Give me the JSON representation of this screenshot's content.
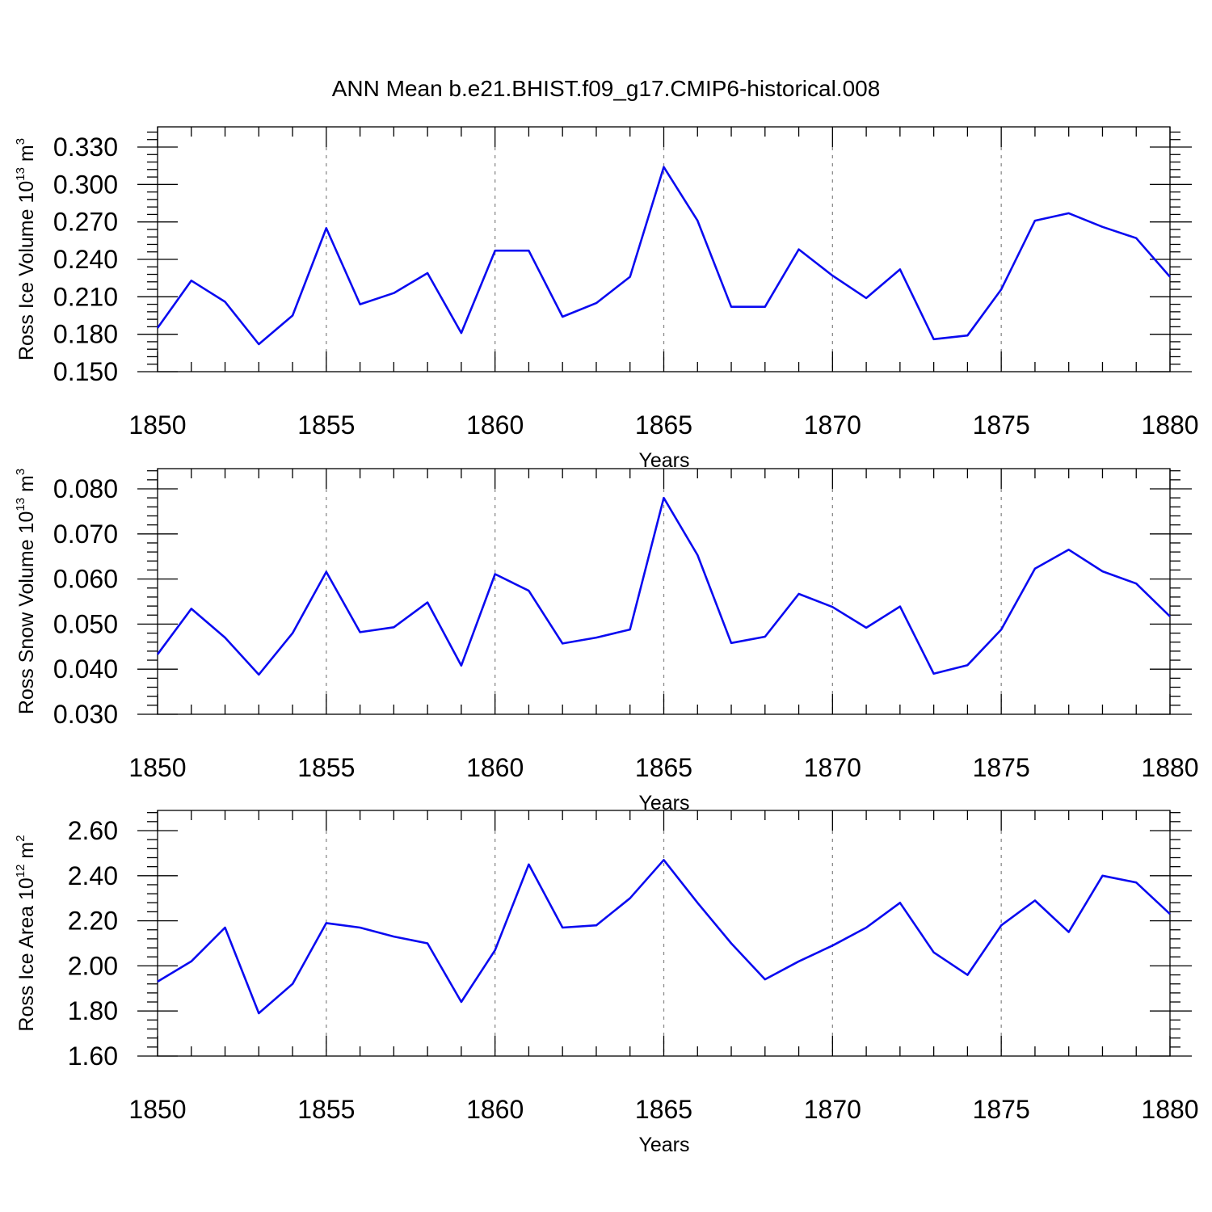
{
  "figure": {
    "title": "ANN Mean b.e21.BHIST.f09_g17.CMIP6-historical.008"
  },
  "chart_data": [
    {
      "type": "line",
      "ylabel": {
        "text": "Ross Ice Volume 10",
        "exponent": "13",
        "unit": "m",
        "unit_exponent": "3"
      },
      "xlabel": "Years",
      "xlim": [
        1850,
        1880
      ],
      "ylim": [
        0.15,
        0.33
      ],
      "x_ticks": [
        "1850",
        "1855",
        "1860",
        "1865",
        "1870",
        "1875",
        "1880"
      ],
      "y_ticks": [
        "0.150",
        "0.180",
        "0.210",
        "0.240",
        "0.270",
        "0.300",
        "0.330"
      ],
      "grid": "dashed vertical lines at major x ticks",
      "x": [
        1850,
        1851,
        1852,
        1853,
        1854,
        1855,
        1856,
        1857,
        1858,
        1859,
        1860,
        1861,
        1862,
        1863,
        1864,
        1865,
        1866,
        1867,
        1868,
        1869,
        1870,
        1871,
        1872,
        1873,
        1874,
        1875,
        1876,
        1877,
        1878,
        1879,
        1880
      ],
      "series": [
        {
          "color": "#0a0af0",
          "values": [
            0.185,
            0.223,
            0.206,
            0.172,
            0.195,
            0.265,
            0.204,
            0.213,
            0.229,
            0.181,
            0.247,
            0.247,
            0.194,
            0.205,
            0.226,
            0.314,
            0.271,
            0.202,
            0.202,
            0.248,
            0.227,
            0.209,
            0.232,
            0.176,
            0.179,
            0.216,
            0.271,
            0.277,
            0.266,
            0.257,
            0.226
          ]
        }
      ]
    },
    {
      "type": "line",
      "ylabel": {
        "text": "Ross Snow Volume 10",
        "exponent": "13",
        "unit": "m",
        "unit_exponent": "3"
      },
      "xlabel": "Years",
      "xlim": [
        1850,
        1880
      ],
      "ylim": [
        0.03,
        0.08
      ],
      "x_ticks": [
        "1850",
        "1855",
        "1860",
        "1865",
        "1870",
        "1875",
        "1880"
      ],
      "y_ticks": [
        "0.030",
        "0.040",
        "0.050",
        "0.060",
        "0.070",
        "0.080"
      ],
      "grid": "dashed vertical lines at major x ticks",
      "x": [
        1850,
        1851,
        1852,
        1853,
        1854,
        1855,
        1856,
        1857,
        1858,
        1859,
        1860,
        1861,
        1862,
        1863,
        1864,
        1865,
        1866,
        1867,
        1868,
        1869,
        1870,
        1871,
        1872,
        1873,
        1874,
        1875,
        1876,
        1877,
        1878,
        1879,
        1880
      ],
      "series": [
        {
          "color": "#0a0af0",
          "values": [
            0.0433,
            0.0534,
            0.047,
            0.0388,
            0.048,
            0.0616,
            0.0482,
            0.0493,
            0.0548,
            0.0408,
            0.0611,
            0.0574,
            0.0457,
            0.047,
            0.0488,
            0.078,
            0.0653,
            0.0458,
            0.0472,
            0.0567,
            0.0538,
            0.0492,
            0.0539,
            0.039,
            0.0409,
            0.0488,
            0.0623,
            0.0665,
            0.0617,
            0.059,
            0.0517
          ]
        }
      ]
    },
    {
      "type": "line",
      "ylabel": {
        "text": "Ross Ice Area 10",
        "exponent": "12",
        "unit": "m",
        "unit_exponent": "2"
      },
      "xlabel": "Years",
      "xlim": [
        1850,
        1880
      ],
      "ylim": [
        1.6,
        2.6
      ],
      "x_ticks": [
        "1850",
        "1855",
        "1860",
        "1865",
        "1870",
        "1875",
        "1880"
      ],
      "y_ticks": [
        "1.60",
        "1.80",
        "2.00",
        "2.20",
        "2.40",
        "2.60"
      ],
      "grid": "dashed vertical lines at major x ticks",
      "x": [
        1850,
        1851,
        1852,
        1853,
        1854,
        1855,
        1856,
        1857,
        1858,
        1859,
        1860,
        1861,
        1862,
        1863,
        1864,
        1865,
        1866,
        1867,
        1868,
        1869,
        1870,
        1871,
        1872,
        1873,
        1874,
        1875,
        1876,
        1877,
        1878,
        1879,
        1880
      ],
      "series": [
        {
          "color": "#0a0af0",
          "values": [
            1.93,
            2.02,
            2.17,
            1.79,
            1.92,
            2.19,
            2.17,
            2.13,
            2.1,
            1.84,
            2.07,
            2.45,
            2.17,
            2.18,
            2.3,
            2.47,
            2.28,
            2.1,
            1.94,
            2.02,
            2.09,
            2.17,
            2.28,
            2.06,
            1.96,
            2.18,
            2.29,
            2.15,
            2.4,
            2.37,
            2.23
          ]
        }
      ]
    }
  ]
}
